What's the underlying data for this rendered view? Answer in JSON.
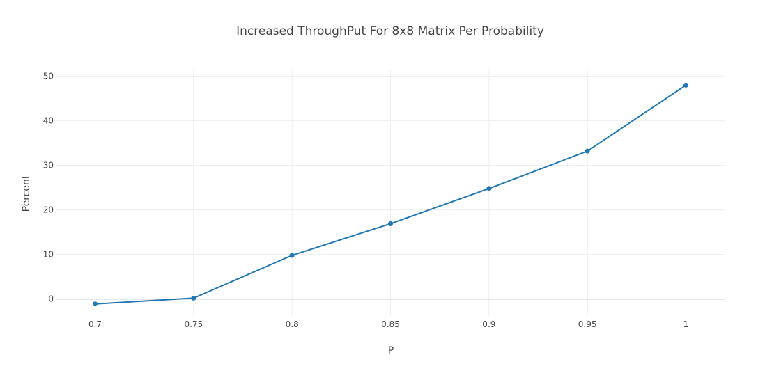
{
  "chart_data": {
    "type": "line",
    "title": "Increased ThroughPut For 8x8 Matrix Per Probability",
    "xlabel": "P",
    "ylabel": "Percent",
    "x": [
      0.7,
      0.75,
      0.8,
      0.85,
      0.9,
      0.95,
      1
    ],
    "x_tick_labels": [
      "0.7",
      "0.75",
      "0.8",
      "0.85",
      "0.9",
      "0.95",
      "1"
    ],
    "y_ticks": [
      0,
      10,
      20,
      30,
      40,
      50
    ],
    "y_tick_labels": [
      "0",
      "10",
      "20",
      "30",
      "40",
      "50"
    ],
    "xlim": [
      0.68,
      1.02
    ],
    "ylim": [
      -3.8,
      51.5
    ],
    "grid": true,
    "legend": "none",
    "series": [
      {
        "values": [
          -1.1,
          0.2,
          9.8,
          16.9,
          24.8,
          33.2,
          48.0
        ],
        "color": "#1f77b4"
      }
    ]
  }
}
